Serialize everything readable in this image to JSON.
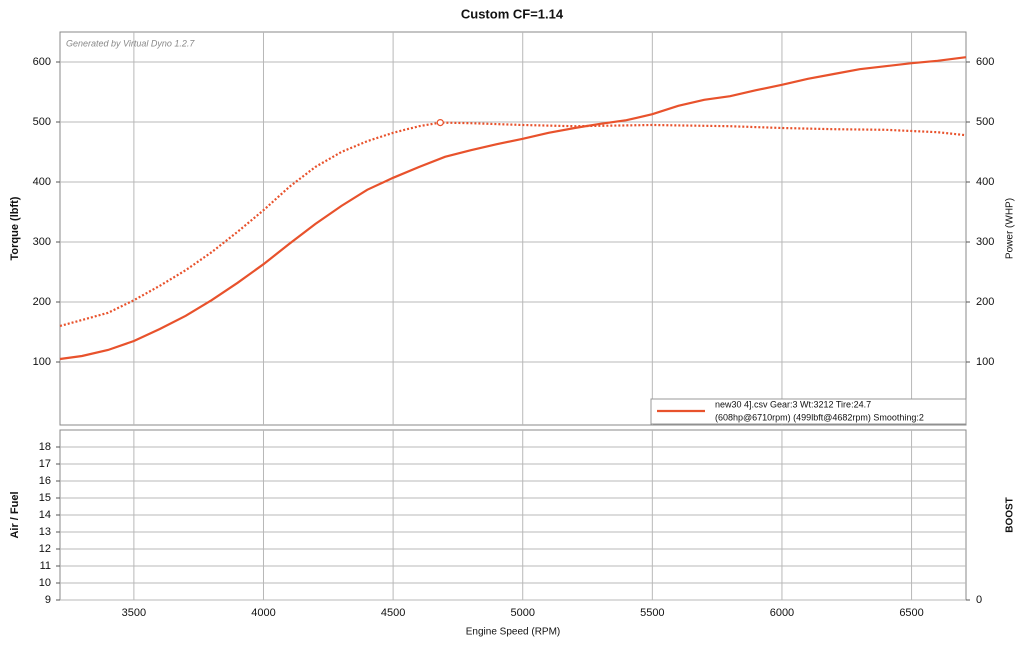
{
  "chart_data": [
    {
      "type": "line",
      "title": "Custom CF=1.14",
      "annotation": "Generated by Virtual Dyno 1.2.7",
      "ylabel": "Torque (lbft)",
      "y2label": "Power (WHP)",
      "xlim": [
        3215,
        6710
      ],
      "xticks": [
        3500,
        4000,
        4500,
        5000,
        5500,
        6000,
        6500
      ],
      "ylim": [
        -5,
        650
      ],
      "yticks": [
        100,
        200,
        300,
        400,
        500,
        600
      ],
      "y2lim": [
        -5,
        650
      ],
      "y2ticks": [
        100,
        200,
        300,
        400,
        500,
        600
      ],
      "grid": true,
      "legend": {
        "position": "lower right",
        "lines": [
          "new30 4].csv Gear:3 Wt:3212 Tire:24.7",
          "(608hp@6710rpm) (499lbft@4682rpm) Smoothing:2"
        ]
      },
      "series": [
        {
          "color": "#e8522c",
          "style": "dotted",
          "axis": "y",
          "x": [
            3215,
            3300,
            3400,
            3500,
            3600,
            3700,
            3800,
            3900,
            4000,
            4100,
            4200,
            4300,
            4400,
            4500,
            4600,
            4682,
            4800,
            5000,
            5200,
            5500,
            5800,
            6000,
            6200,
            6400,
            6600,
            6710
          ],
          "values": [
            160,
            170,
            182,
            203,
            227,
            253,
            283,
            317,
            353,
            392,
            425,
            450,
            468,
            482,
            493,
            499,
            498,
            495,
            493,
            495,
            493,
            490,
            488,
            487,
            483,
            478
          ],
          "peak": {
            "x": 4682,
            "value": 499
          }
        },
        {
          "color": "#e8522c",
          "style": "solid",
          "axis": "y2",
          "x": [
            3215,
            3300,
            3400,
            3500,
            3600,
            3700,
            3800,
            3900,
            4000,
            4100,
            4200,
            4300,
            4400,
            4500,
            4600,
            4700,
            4800,
            4900,
            5000,
            5100,
            5200,
            5300,
            5400,
            5500,
            5600,
            5700,
            5800,
            5900,
            6000,
            6100,
            6200,
            6300,
            6400,
            6500,
            6600,
            6710
          ],
          "values": [
            105,
            110,
            120,
            135,
            155,
            177,
            203,
            232,
            263,
            297,
            330,
            360,
            387,
            407,
            425,
            442,
            453,
            463,
            472,
            482,
            490,
            497,
            503,
            513,
            527,
            537,
            543,
            553,
            562,
            572,
            580,
            588,
            593,
            598,
            602,
            608
          ]
        }
      ]
    },
    {
      "type": "line",
      "ylabel": "Air / Fuel",
      "y2label": "BOOST",
      "xlabel": "Engine Speed (RPM)",
      "xlim": [
        3215,
        6710
      ],
      "xticks": [
        3500,
        4000,
        4500,
        5000,
        5500,
        6000,
        6500
      ],
      "ylim": [
        9,
        19
      ],
      "yticks": [
        9,
        10,
        11,
        12,
        13,
        14,
        15,
        16,
        17,
        18
      ],
      "y2ticks": [
        0
      ],
      "grid": true
    }
  ]
}
